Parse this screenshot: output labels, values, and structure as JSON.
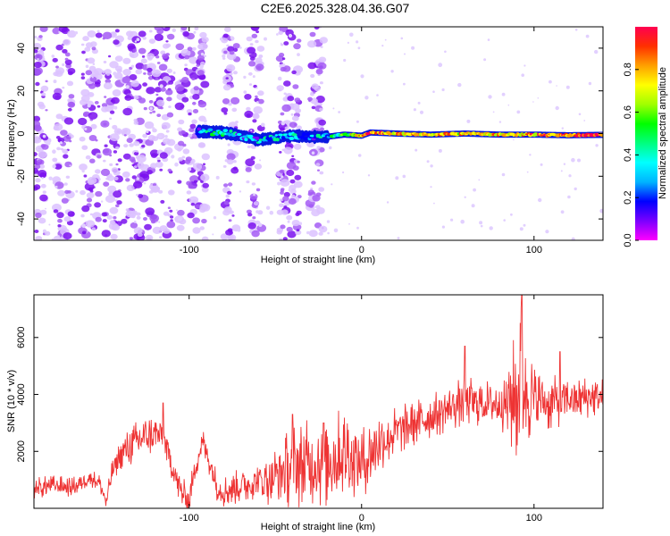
{
  "title": "C2E6.2025.328.04.36.G07",
  "chart_data": [
    {
      "type": "heatmap",
      "xlabel": "Height of straight line (km)",
      "ylabel": "Frequency (Hz)",
      "xlim": [
        -190,
        140
      ],
      "ylim": [
        -50,
        50
      ],
      "xticks": [
        -100,
        0,
        100
      ],
      "yticks": [
        -40,
        -20,
        0,
        20,
        40
      ],
      "colorbar": {
        "label": "Normalized spectral amplitude",
        "range": [
          0,
          1
        ],
        "ticks": [
          "0.0",
          "0.2",
          "0.4",
          "0.6",
          "0.8"
        ],
        "tick_values": [
          0,
          0.2,
          0.4,
          0.6,
          0.8
        ],
        "colors": [
          "#ff00ff",
          "#7a00ff",
          "#0000ff",
          "#00b4ff",
          "#00ffff",
          "#00ff7f",
          "#00ff00",
          "#a0ff00",
          "#ffff00",
          "#ffa000",
          "#ff3000",
          "#ff0050"
        ]
      },
      "features": {
        "noise_region_km": [
          -190,
          -35
        ],
        "signal_track": {
          "start_km": -95,
          "end_km": 140,
          "frequency_points": [
            [
              -95,
              1
            ],
            [
              -80,
              0.5
            ],
            [
              -70,
              -1
            ],
            [
              -60,
              -3
            ],
            [
              -50,
              -2
            ],
            [
              -40,
              -1
            ],
            [
              -30,
              -1.5
            ],
            [
              -20,
              -1.5
            ],
            [
              -10,
              -0.5
            ],
            [
              0,
              -1
            ],
            [
              5,
              0.5
            ],
            [
              20,
              0
            ],
            [
              40,
              -0.5
            ],
            [
              60,
              0
            ],
            [
              80,
              -0.5
            ],
            [
              100,
              -0.5
            ],
            [
              120,
              -0.8
            ],
            [
              140,
              -0.6
            ]
          ],
          "amplitude_points": [
            [
              -95,
              0.2
            ],
            [
              -80,
              0.5
            ],
            [
              -70,
              0.2
            ],
            [
              -60,
              0.3
            ],
            [
              -50,
              0.35
            ],
            [
              -30,
              0.25
            ],
            [
              -15,
              0.4
            ],
            [
              -5,
              0.7
            ],
            [
              5,
              0.85
            ],
            [
              20,
              0.75
            ],
            [
              40,
              0.8
            ],
            [
              60,
              0.7
            ],
            [
              80,
              0.75
            ],
            [
              100,
              0.8
            ],
            [
              120,
              0.9
            ],
            [
              140,
              0.95
            ]
          ]
        }
      }
    },
    {
      "type": "line",
      "xlabel": "Height of straight line (km)",
      "ylabel": "SNR (10 * v/v)",
      "xlim": [
        -190,
        140
      ],
      "ylim": [
        0,
        7500
      ],
      "xticks": [
        -100,
        0,
        100
      ],
      "yticks": [
        2000,
        4000,
        6000
      ],
      "color": "#ee3333",
      "series": [
        {
          "name": "SNR",
          "envelope": [
            [
              -190,
              700
            ],
            [
              -178,
              800
            ],
            [
              -170,
              750
            ],
            [
              -165,
              800
            ],
            [
              -158,
              1100
            ],
            [
              -152,
              900
            ],
            [
              -148,
              200
            ],
            [
              -145,
              1200
            ],
            [
              -140,
              1900
            ],
            [
              -133,
              2200
            ],
            [
              -126,
              2500
            ],
            [
              -120,
              2600
            ],
            [
              -115,
              2500
            ],
            [
              -110,
              1500
            ],
            [
              -105,
              600
            ],
            [
              -100,
              300
            ],
            [
              -96,
              1600
            ],
            [
              -92,
              2300
            ],
            [
              -88,
              1600
            ],
            [
              -84,
              800
            ],
            [
              -80,
              600
            ],
            [
              -72,
              750
            ],
            [
              -64,
              900
            ],
            [
              -56,
              1000
            ],
            [
              -48,
              1200
            ],
            [
              -40,
              1500
            ],
            [
              -32,
              1500
            ],
            [
              -24,
              1700
            ],
            [
              -16,
              1800
            ],
            [
              -8,
              2000
            ],
            [
              -2,
              1600
            ],
            [
              2,
              1700
            ],
            [
              10,
              2300
            ],
            [
              20,
              2700
            ],
            [
              30,
              3000
            ],
            [
              40,
              3200
            ],
            [
              50,
              3500
            ],
            [
              60,
              3800
            ],
            [
              70,
              3700
            ],
            [
              80,
              3700
            ],
            [
              90,
              3900
            ],
            [
              92,
              4700
            ],
            [
              95,
              4200
            ],
            [
              100,
              3800
            ],
            [
              110,
              3700
            ],
            [
              120,
              3800
            ],
            [
              130,
              3900
            ],
            [
              140,
              3900
            ]
          ],
          "spread": [
            [
              -190,
              400
            ],
            [
              -150,
              300
            ],
            [
              -130,
              800
            ],
            [
              -110,
              600
            ],
            [
              -90,
              500
            ],
            [
              -60,
              700
            ],
            [
              -40,
              1500
            ],
            [
              -20,
              1800
            ],
            [
              0,
              1300
            ],
            [
              20,
              900
            ],
            [
              40,
              800
            ],
            [
              60,
              900
            ],
            [
              80,
              800
            ],
            [
              92,
              2800
            ],
            [
              100,
              1200
            ],
            [
              120,
              800
            ],
            [
              140,
              700
            ]
          ],
          "peaks": [
            [
              -115,
              3700
            ],
            [
              -40,
              3300
            ],
            [
              -22,
              3000
            ],
            [
              60,
              5700
            ],
            [
              93,
              7500
            ],
            [
              115,
              5500
            ]
          ]
        }
      ]
    }
  ]
}
